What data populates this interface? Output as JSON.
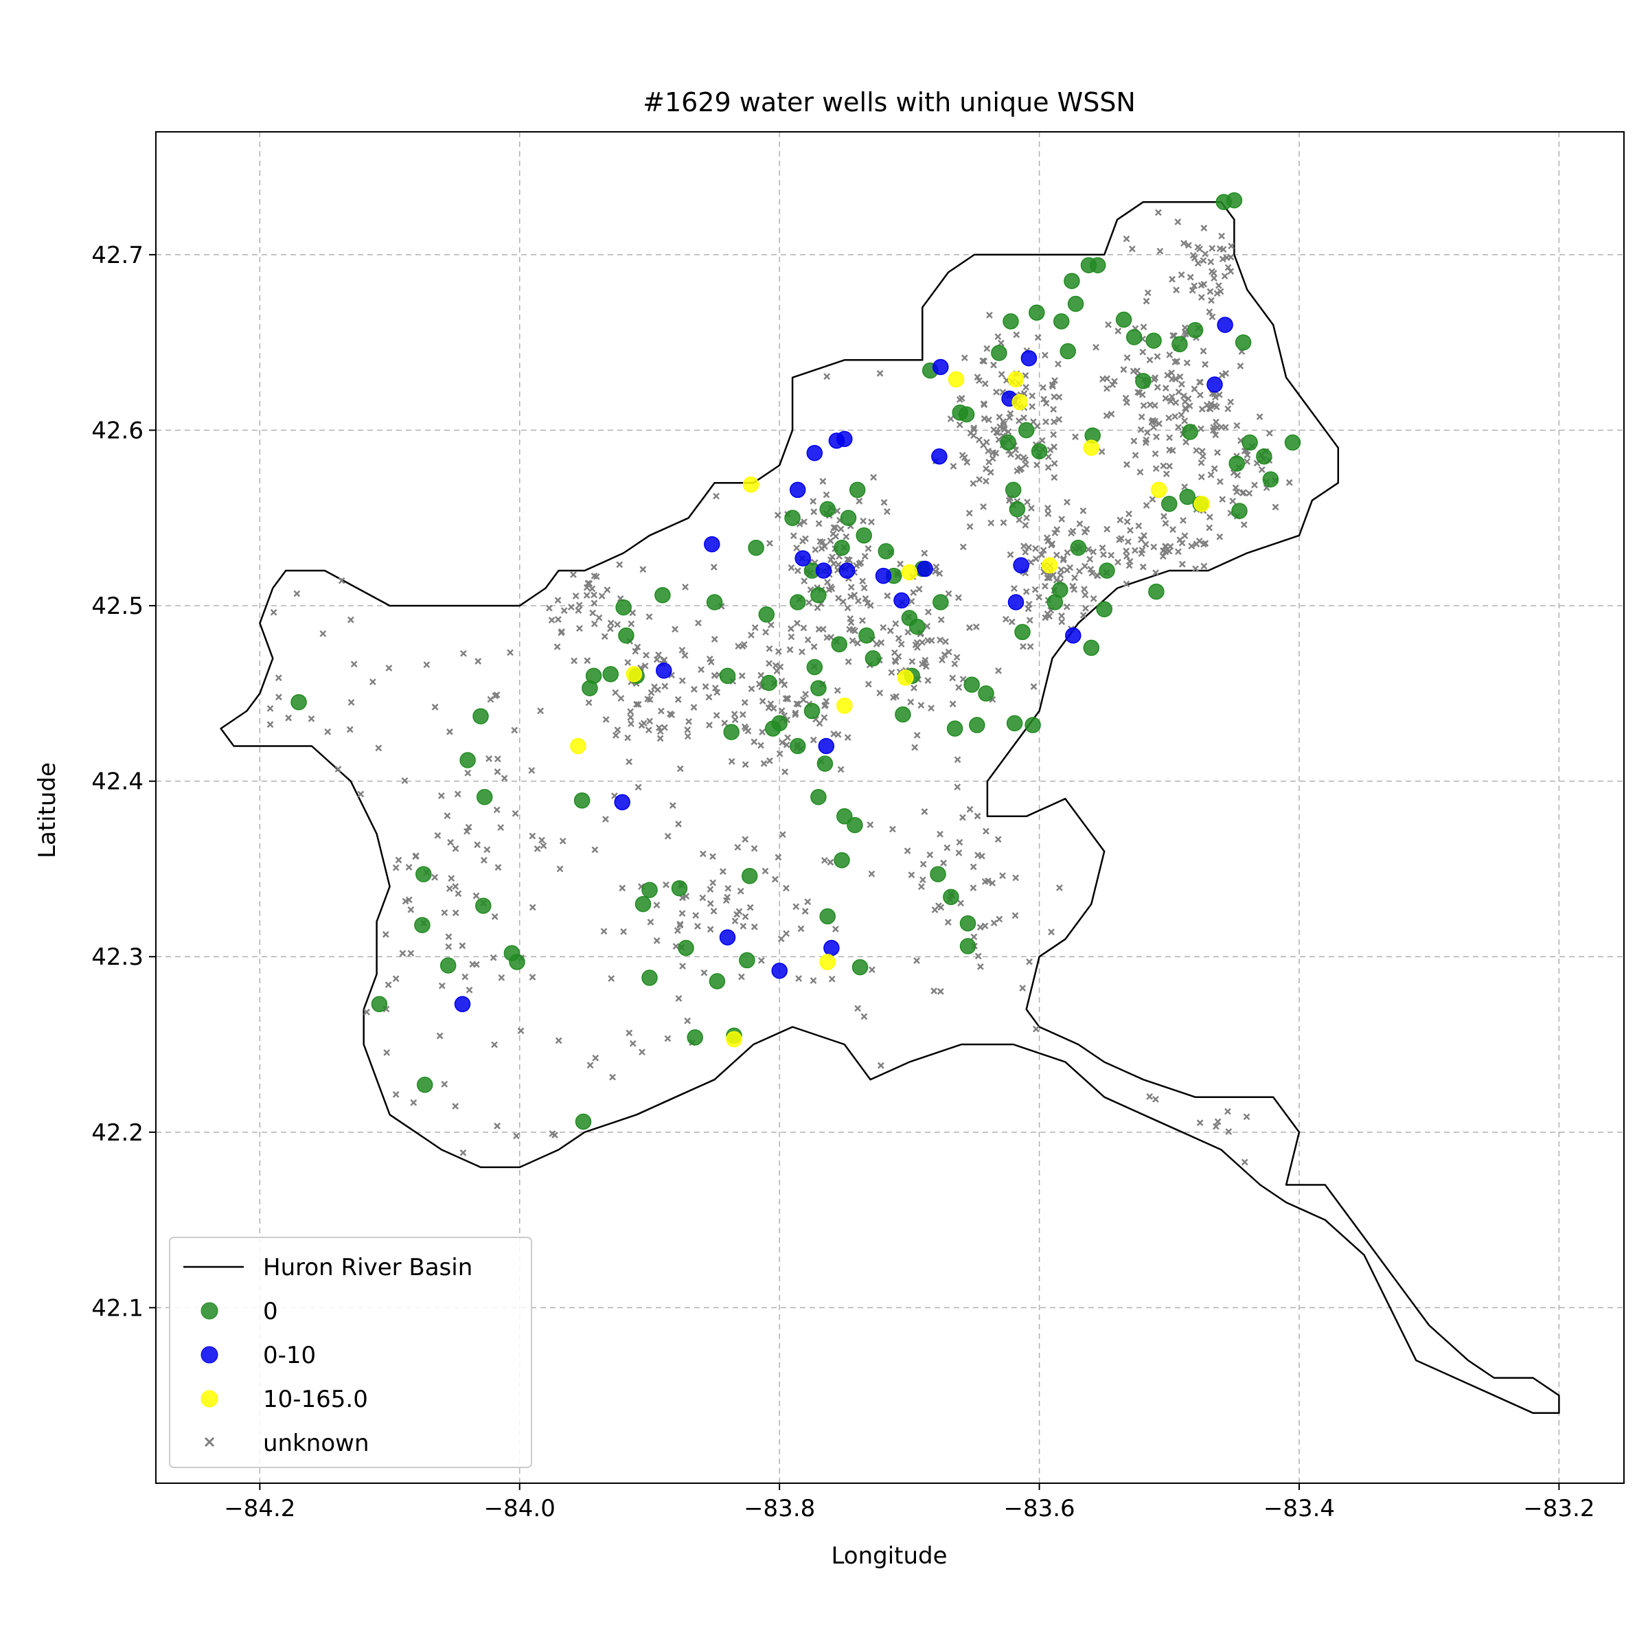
{
  "chart_data": {
    "type": "scatter",
    "title": "#1629 water wells with unique WSSN",
    "xlabel": "Longitude",
    "ylabel": "Latitude",
    "xlim": [
      -84.28,
      -83.15
    ],
    "ylim": [
      42.0,
      42.77
    ],
    "xticks": [
      -84.2,
      -84.0,
      -83.8,
      -83.6,
      -83.4,
      -83.2
    ],
    "yticks": [
      42.1,
      42.2,
      42.3,
      42.4,
      42.5,
      42.6,
      42.7
    ],
    "xtick_labels": [
      "−84.2",
      "−84.0",
      "−83.8",
      "−83.6",
      "−83.4",
      "−83.2"
    ],
    "ytick_labels": [
      "42.1",
      "42.2",
      "42.3",
      "42.4",
      "42.5",
      "42.6",
      "42.7"
    ],
    "grid": true,
    "legend_position": "lower-left",
    "basin": {
      "name": "Huron River Basin",
      "color": "#000000",
      "boundary": [
        [
          -84.22,
          42.42
        ],
        [
          -84.23,
          42.43
        ],
        [
          -84.21,
          42.44
        ],
        [
          -84.2,
          42.45
        ],
        [
          -84.19,
          42.47
        ],
        [
          -84.2,
          42.49
        ],
        [
          -84.19,
          42.51
        ],
        [
          -84.18,
          42.52
        ],
        [
          -84.15,
          42.52
        ],
        [
          -84.1,
          42.5
        ],
        [
          -84.05,
          42.5
        ],
        [
          -84.02,
          42.5
        ],
        [
          -84.0,
          42.5
        ],
        [
          -83.98,
          42.51
        ],
        [
          -83.97,
          42.52
        ],
        [
          -83.95,
          42.52
        ],
        [
          -83.92,
          42.53
        ],
        [
          -83.9,
          42.54
        ],
        [
          -83.87,
          42.55
        ],
        [
          -83.86,
          42.56
        ],
        [
          -83.85,
          42.57
        ],
        [
          -83.82,
          42.57
        ],
        [
          -83.8,
          42.58
        ],
        [
          -83.79,
          42.6
        ],
        [
          -83.79,
          42.63
        ],
        [
          -83.75,
          42.64
        ],
        [
          -83.72,
          42.64
        ],
        [
          -83.69,
          42.64
        ],
        [
          -83.69,
          42.67
        ],
        [
          -83.67,
          42.69
        ],
        [
          -83.65,
          42.7
        ],
        [
          -83.6,
          42.7
        ],
        [
          -83.57,
          42.7
        ],
        [
          -83.55,
          42.7
        ],
        [
          -83.54,
          42.72
        ],
        [
          -83.52,
          42.73
        ],
        [
          -83.49,
          42.73
        ],
        [
          -83.46,
          42.73
        ],
        [
          -83.45,
          42.72
        ],
        [
          -83.45,
          42.7
        ],
        [
          -83.44,
          42.68
        ],
        [
          -83.42,
          42.66
        ],
        [
          -83.41,
          42.63
        ],
        [
          -83.39,
          42.61
        ],
        [
          -83.37,
          42.59
        ],
        [
          -83.37,
          42.57
        ],
        [
          -83.39,
          42.56
        ],
        [
          -83.4,
          42.54
        ],
        [
          -83.44,
          42.53
        ],
        [
          -83.47,
          42.52
        ],
        [
          -83.5,
          42.52
        ],
        [
          -83.54,
          42.51
        ],
        [
          -83.57,
          42.49
        ],
        [
          -83.59,
          42.47
        ],
        [
          -83.6,
          42.44
        ],
        [
          -83.62,
          42.42
        ],
        [
          -83.64,
          42.4
        ],
        [
          -83.64,
          42.38
        ],
        [
          -83.61,
          42.38
        ],
        [
          -83.58,
          42.39
        ],
        [
          -83.55,
          42.36
        ],
        [
          -83.56,
          42.33
        ],
        [
          -83.58,
          42.31
        ],
        [
          -83.6,
          42.3
        ],
        [
          -83.61,
          42.27
        ],
        [
          -83.6,
          42.26
        ],
        [
          -83.57,
          42.25
        ],
        [
          -83.55,
          42.24
        ],
        [
          -83.52,
          42.23
        ],
        [
          -83.48,
          42.22
        ],
        [
          -83.45,
          42.22
        ],
        [
          -83.42,
          42.22
        ],
        [
          -83.4,
          42.2
        ],
        [
          -83.41,
          42.17
        ],
        [
          -83.38,
          42.17
        ],
        [
          -83.36,
          42.15
        ],
        [
          -83.33,
          42.12
        ],
        [
          -83.3,
          42.09
        ],
        [
          -83.27,
          42.07
        ],
        [
          -83.25,
          42.06
        ],
        [
          -83.22,
          42.06
        ],
        [
          -83.2,
          42.05
        ],
        [
          -83.2,
          42.04
        ],
        [
          -83.22,
          42.04
        ],
        [
          -83.25,
          42.05
        ],
        [
          -83.28,
          42.06
        ],
        [
          -83.31,
          42.07
        ],
        [
          -83.33,
          42.1
        ],
        [
          -83.35,
          42.13
        ],
        [
          -83.38,
          42.15
        ],
        [
          -83.41,
          42.16
        ],
        [
          -83.43,
          42.17
        ],
        [
          -83.46,
          42.19
        ],
        [
          -83.49,
          42.2
        ],
        [
          -83.52,
          42.21
        ],
        [
          -83.55,
          42.22
        ],
        [
          -83.58,
          42.24
        ],
        [
          -83.62,
          42.25
        ],
        [
          -83.66,
          42.25
        ],
        [
          -83.7,
          42.24
        ],
        [
          -83.73,
          42.23
        ],
        [
          -83.75,
          42.25
        ],
        [
          -83.79,
          42.26
        ],
        [
          -83.82,
          42.25
        ],
        [
          -83.85,
          42.23
        ],
        [
          -83.88,
          42.22
        ],
        [
          -83.91,
          42.21
        ],
        [
          -83.95,
          42.2
        ],
        [
          -83.97,
          42.19
        ],
        [
          -84.0,
          42.18
        ],
        [
          -84.03,
          42.18
        ],
        [
          -84.06,
          42.19
        ],
        [
          -84.08,
          42.2
        ],
        [
          -84.1,
          42.21
        ],
        [
          -84.11,
          42.23
        ],
        [
          -84.12,
          42.25
        ],
        [
          -84.12,
          42.27
        ],
        [
          -84.11,
          42.29
        ],
        [
          -84.11,
          42.32
        ],
        [
          -84.1,
          42.34
        ],
        [
          -84.11,
          42.37
        ],
        [
          -84.13,
          42.4
        ],
        [
          -84.16,
          42.42
        ],
        [
          -84.19,
          42.42
        ],
        [
          -84.21,
          42.42
        ],
        [
          -84.22,
          42.42
        ]
      ]
    },
    "series": [
      {
        "name": "0",
        "color": "#228b22",
        "marker": "circle",
        "points": [
          [
            -84.17,
            42.445
          ],
          [
            -84.108,
            42.273
          ],
          [
            -84.073,
            42.227
          ],
          [
            -84.075,
            42.318
          ],
          [
            -84.074,
            42.347
          ],
          [
            -84.055,
            42.295
          ],
          [
            -84.04,
            42.412
          ],
          [
            -84.03,
            42.437
          ],
          [
            -84.028,
            42.329
          ],
          [
            -84.027,
            42.391
          ],
          [
            -84.006,
            42.302
          ],
          [
            -84.002,
            42.297
          ],
          [
            -83.951,
            42.206
          ],
          [
            -83.952,
            42.389
          ],
          [
            -83.946,
            42.453
          ],
          [
            -83.943,
            42.46
          ],
          [
            -83.93,
            42.461
          ],
          [
            -83.92,
            42.499
          ],
          [
            -83.918,
            42.483
          ],
          [
            -83.91,
            42.46
          ],
          [
            -83.905,
            42.33
          ],
          [
            -83.9,
            42.338
          ],
          [
            -83.9,
            42.288
          ],
          [
            -83.89,
            42.506
          ],
          [
            -83.877,
            42.339
          ],
          [
            -83.872,
            42.305
          ],
          [
            -83.865,
            42.254
          ],
          [
            -83.848,
            42.286
          ],
          [
            -83.85,
            42.502
          ],
          [
            -83.84,
            42.46
          ],
          [
            -83.837,
            42.428
          ],
          [
            -83.835,
            42.255
          ],
          [
            -83.825,
            42.298
          ],
          [
            -83.823,
            42.346
          ],
          [
            -83.818,
            42.533
          ],
          [
            -83.81,
            42.495
          ],
          [
            -83.808,
            42.456
          ],
          [
            -83.8,
            42.433
          ],
          [
            -83.805,
            42.43
          ],
          [
            -83.786,
            42.502
          ],
          [
            -83.786,
            42.42
          ],
          [
            -83.79,
            42.55
          ],
          [
            -83.77,
            42.453
          ],
          [
            -83.773,
            42.465
          ],
          [
            -83.775,
            42.44
          ],
          [
            -83.77,
            42.506
          ],
          [
            -83.775,
            42.52
          ],
          [
            -83.77,
            42.391
          ],
          [
            -83.765,
            42.41
          ],
          [
            -83.763,
            42.555
          ],
          [
            -83.752,
            42.533
          ],
          [
            -83.754,
            42.478
          ],
          [
            -83.747,
            42.55
          ],
          [
            -83.74,
            42.566
          ],
          [
            -83.735,
            42.54
          ],
          [
            -83.733,
            42.483
          ],
          [
            -83.728,
            42.47
          ],
          [
            -83.75,
            42.38
          ],
          [
            -83.742,
            42.375
          ],
          [
            -83.738,
            42.294
          ],
          [
            -83.752,
            42.355
          ],
          [
            -83.718,
            42.531
          ],
          [
            -83.712,
            42.517
          ],
          [
            -83.705,
            42.438
          ],
          [
            -83.698,
            42.46
          ],
          [
            -83.7,
            42.493
          ],
          [
            -83.694,
            42.488
          ],
          [
            -83.69,
            42.521
          ],
          [
            -83.684,
            42.634
          ],
          [
            -83.678,
            42.347
          ],
          [
            -83.676,
            42.502
          ],
          [
            -83.668,
            42.334
          ],
          [
            -83.665,
            42.43
          ],
          [
            -83.661,
            42.61
          ],
          [
            -83.656,
            42.609
          ],
          [
            -83.655,
            42.319
          ],
          [
            -83.655,
            42.306
          ],
          [
            -83.652,
            42.455
          ],
          [
            -83.648,
            42.432
          ],
          [
            -83.641,
            42.45
          ],
          [
            -83.631,
            42.644
          ],
          [
            -83.622,
            42.662
          ],
          [
            -83.624,
            42.593
          ],
          [
            -83.62,
            42.566
          ],
          [
            -83.619,
            42.433
          ],
          [
            -83.617,
            42.555
          ],
          [
            -83.613,
            42.485
          ],
          [
            -83.61,
            42.6
          ],
          [
            -83.605,
            42.432
          ],
          [
            -83.602,
            42.667
          ],
          [
            -83.6,
            42.588
          ],
          [
            -83.588,
            42.502
          ],
          [
            -83.584,
            42.509
          ],
          [
            -83.583,
            42.662
          ],
          [
            -83.578,
            42.645
          ],
          [
            -83.575,
            42.685
          ],
          [
            -83.572,
            42.672
          ],
          [
            -83.57,
            42.533
          ],
          [
            -83.562,
            42.694
          ],
          [
            -83.56,
            42.476
          ],
          [
            -83.559,
            42.597
          ],
          [
            -83.555,
            42.694
          ],
          [
            -83.55,
            42.498
          ],
          [
            -83.548,
            42.52
          ],
          [
            -83.535,
            42.663
          ],
          [
            -83.527,
            42.653
          ],
          [
            -83.52,
            42.628
          ],
          [
            -83.512,
            42.651
          ],
          [
            -83.51,
            42.508
          ],
          [
            -83.5,
            42.558
          ],
          [
            -83.492,
            42.649
          ],
          [
            -83.486,
            42.562
          ],
          [
            -83.48,
            42.657
          ],
          [
            -83.484,
            42.599
          ],
          [
            -83.476,
            42.558
          ],
          [
            -83.458,
            42.73
          ],
          [
            -83.45,
            42.731
          ],
          [
            -83.448,
            42.581
          ],
          [
            -83.446,
            42.554
          ],
          [
            -83.443,
            42.65
          ],
          [
            -83.438,
            42.593
          ],
          [
            -83.427,
            42.585
          ],
          [
            -83.405,
            42.593
          ],
          [
            -83.422,
            42.572
          ],
          [
            -83.763,
            42.323
          ]
        ]
      },
      {
        "name": "0-10",
        "color": "#0000ee",
        "marker": "circle",
        "points": [
          [
            -84.044,
            42.273
          ],
          [
            -83.921,
            42.388
          ],
          [
            -83.889,
            42.463
          ],
          [
            -83.852,
            42.535
          ],
          [
            -83.84,
            42.311
          ],
          [
            -83.8,
            42.292
          ],
          [
            -83.786,
            42.566
          ],
          [
            -83.782,
            42.527
          ],
          [
            -83.773,
            42.587
          ],
          [
            -83.766,
            42.52
          ],
          [
            -83.764,
            42.42
          ],
          [
            -83.76,
            42.305
          ],
          [
            -83.756,
            42.594
          ],
          [
            -83.75,
            42.595
          ],
          [
            -83.748,
            42.52
          ],
          [
            -83.72,
            42.517
          ],
          [
            -83.706,
            42.503
          ],
          [
            -83.688,
            42.521
          ],
          [
            -83.677,
            42.585
          ],
          [
            -83.676,
            42.636
          ],
          [
            -83.623,
            42.618
          ],
          [
            -83.618,
            42.502
          ],
          [
            -83.614,
            42.523
          ],
          [
            -83.608,
            42.641
          ],
          [
            -83.574,
            42.483
          ],
          [
            -83.465,
            42.626
          ],
          [
            -83.457,
            42.66
          ]
        ]
      },
      {
        "name": "10-165.0",
        "color": "#ffff00",
        "marker": "circle",
        "points": [
          [
            -83.955,
            42.42
          ],
          [
            -83.912,
            42.461
          ],
          [
            -83.835,
            42.253
          ],
          [
            -83.822,
            42.569
          ],
          [
            -83.763,
            42.297
          ],
          [
            -83.75,
            42.443
          ],
          [
            -83.703,
            42.459
          ],
          [
            -83.7,
            42.519
          ],
          [
            -83.664,
            42.629
          ],
          [
            -83.618,
            42.629
          ],
          [
            -83.615,
            42.616
          ],
          [
            -83.592,
            42.523
          ],
          [
            -83.56,
            42.59
          ],
          [
            -83.508,
            42.566
          ],
          [
            -83.475,
            42.558
          ]
        ]
      },
      {
        "name": "unknown",
        "color": "#808080",
        "marker": "x",
        "points": []
      }
    ]
  }
}
